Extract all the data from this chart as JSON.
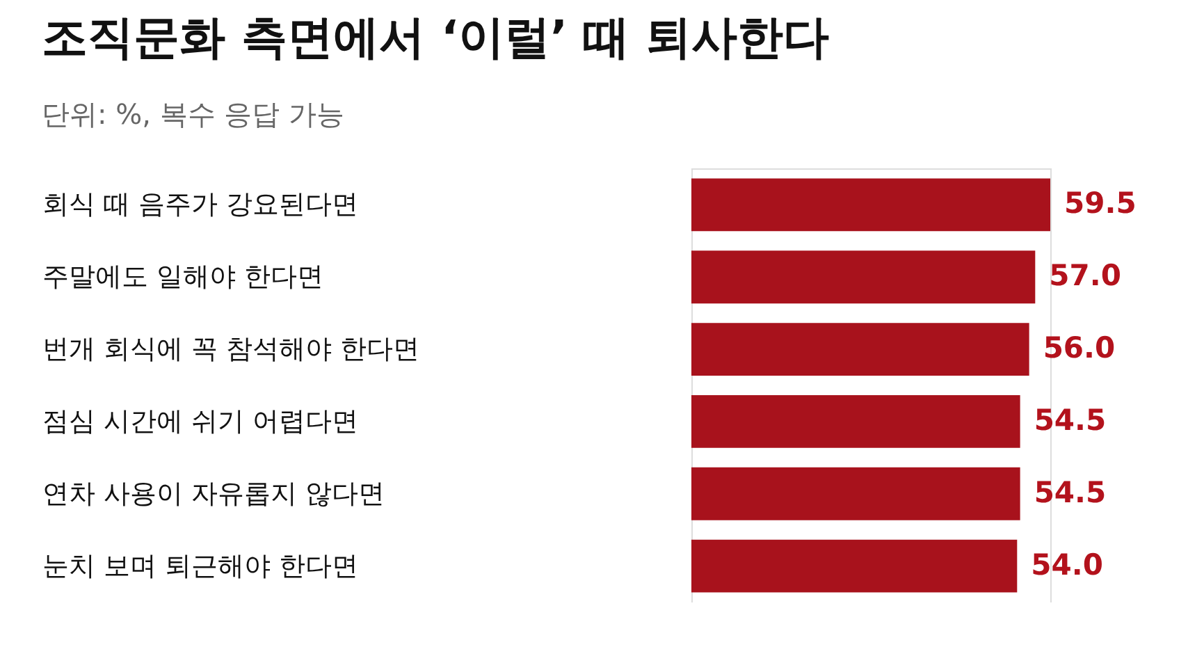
{
  "chart_data": {
    "type": "bar",
    "orientation": "horizontal",
    "title": "조직문화 측면에서 ‘이럴’ 때 퇴사한다",
    "subtitle": "단위: %, 복수 응답 가능",
    "categories": [
      "회식 때 음주가 강요된다면",
      "주말에도 일해야 한다면",
      "번개 회식에 꼭 참석해야 한다면",
      "점심 시간에 쉬기 어렵다면",
      "연차 사용이 자유롭지 않다면",
      "눈치 보며 퇴근해야 한다면"
    ],
    "values": [
      59.5,
      57.0,
      56.0,
      54.5,
      54.5,
      54.0
    ],
    "value_labels": [
      "59.5",
      "57.0",
      "56.0",
      "54.5",
      "54.5",
      "54.0"
    ],
    "color": "#a8121c"
  }
}
